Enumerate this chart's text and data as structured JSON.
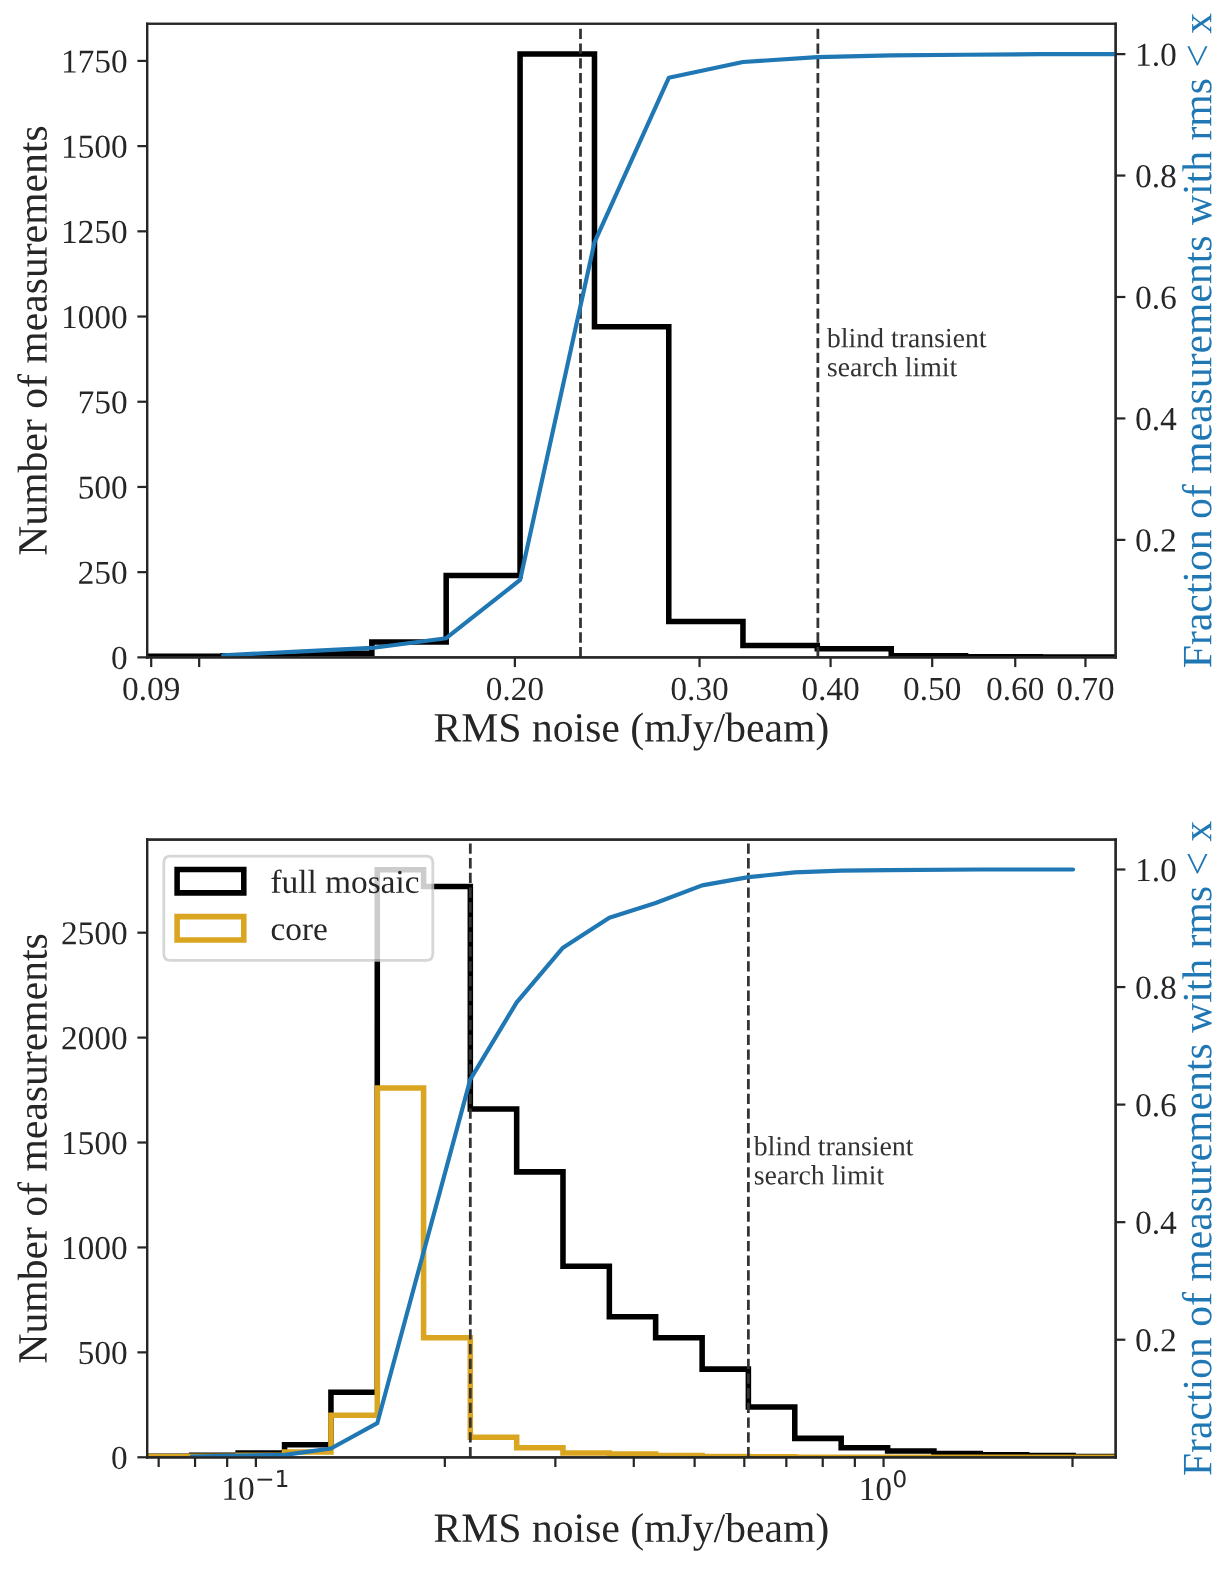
{
  "chart_data": [
    {
      "type": "histogram",
      "xlabel": "RMS noise (mJy/beam)",
      "ylabel": "Number of measurements",
      "y2label": "Fraction of measurements with rms < x",
      "log": "x",
      "bins": [
        0.0895,
        0.1054,
        0.1241,
        0.1461,
        0.172,
        0.2023,
        0.2382,
        0.2804,
        0.33,
        0.3885,
        0.457,
        0.538,
        0.634,
        0.746
      ],
      "series": [
        {
          "color": "#000000",
          "values": [
            3,
            5,
            12,
            45,
            240,
            1770,
            970,
            105,
            35,
            25,
            5,
            2,
            1
          ]
        },
        {
          "type": "line",
          "axis": "y2",
          "color": "#1f77b4",
          "x": [
            0.1054,
            0.1241,
            0.1461,
            0.172,
            0.2023,
            0.2382,
            0.2804,
            0.33,
            0.3885,
            0.457,
            0.538,
            0.634,
            0.746
          ],
          "values": [
            0.01,
            0.016,
            0.022,
            0.038,
            0.134,
            0.69,
            0.961,
            0.987,
            0.995,
            0.998,
            0.999,
            1.0,
            1.0
          ]
        }
      ],
      "xlim": [
        0.0892,
        0.748
      ],
      "xticks": [
        0.09,
        {
          "value": 0.1,
          "label": null
        },
        {
          "value": 0.2,
          "label": "0.20"
        },
        {
          "value": 0.3,
          "label": "0.30"
        },
        {
          "value": 0.4,
          "label": "0.40"
        },
        {
          "value": 0.5,
          "label": "0.50"
        },
        {
          "value": 0.6,
          "label": "0.60"
        },
        {
          "value": 0.7,
          "label": "0.70"
        }
      ],
      "ylim": [
        0,
        1859
      ],
      "yticks": [
        0,
        250,
        500,
        750,
        1000,
        1250,
        1500,
        1750
      ],
      "y2lim": [
        0.0065,
        1.05
      ],
      "y2ticks": [
        0.2,
        0.4,
        0.6,
        0.8,
        {
          "value": 1.0,
          "label": "1.0"
        }
      ],
      "ref_lines": [
        {
          "axis": "x",
          "value": 0.231,
          "label": null,
          "line_style": "dashed"
        },
        {
          "axis": "x",
          "value": 0.389,
          "label": "blind transient\nsearch limit",
          "line_style": "dashed"
        }
      ],
      "grid": false,
      "legend": false
    },
    {
      "type": "histogram",
      "xlabel": "RMS noise (mJy/beam)",
      "ylabel": "Number of measurements",
      "y2label": "Fraction of measurements with rms < x",
      "log": "x",
      "bins": [
        0.0667,
        0.079,
        0.0937,
        0.1111,
        0.1317,
        0.1561,
        0.185,
        0.2196,
        0.2603,
        0.3085,
        0.3657,
        0.4334,
        0.514,
        0.609,
        0.722,
        0.856,
        1.015,
        1.203,
        1.426,
        1.69,
        2.004,
        2.375
      ],
      "series": [
        {
          "name": "full mosaic",
          "color": "#000000",
          "values": [
            5,
            10,
            20,
            60,
            310,
            2800,
            2720,
            1660,
            1360,
            910,
            670,
            570,
            420,
            240,
            90,
            45,
            30,
            18,
            12,
            8,
            3
          ]
        },
        {
          "name": "core",
          "color": "#daa520",
          "values": [
            3,
            5,
            10,
            25,
            200,
            1760,
            570,
            95,
            45,
            20,
            15,
            8,
            3,
            2,
            0,
            0,
            0,
            0,
            0,
            0,
            0
          ]
        },
        {
          "type": "line",
          "axis": "y2",
          "color": "#1f77b4",
          "x": [
            0.079,
            0.0937,
            0.1111,
            0.1317,
            0.1561,
            0.2196,
            0.2603,
            0.3085,
            0.3657,
            0.4334,
            0.514,
            0.609,
            0.722,
            0.856,
            1.015,
            1.426,
            2.004
          ],
          "values": [
            0.001,
            0.003,
            0.004,
            0.015,
            0.058,
            0.643,
            0.774,
            0.867,
            0.918,
            0.943,
            0.973,
            0.987,
            0.995,
            0.998,
            0.999,
            1.0,
            1.0
          ]
        }
      ],
      "xlim": [
        0.0671,
        2.343
      ],
      "xticks": [
        {
          "value": 0.07,
          "label": null
        },
        {
          "value": 0.08,
          "label": null
        },
        {
          "value": 0.09,
          "label": null
        },
        {
          "value": 0.1,
          "label": "10$^{−1}$"
        },
        {
          "value": 0.2,
          "label": null
        },
        {
          "value": 0.3,
          "label": null
        },
        {
          "value": 0.4,
          "label": null
        },
        {
          "value": 0.5,
          "label": null
        },
        {
          "value": 0.6,
          "label": null
        },
        {
          "value": 0.7,
          "label": null
        },
        {
          "value": 0.8,
          "label": null
        },
        {
          "value": 0.9,
          "label": null
        },
        {
          "value": 1,
          "label": "10$^{0}$"
        },
        {
          "value": 2,
          "label": null
        }
      ],
      "ylim": [
        0,
        2944
      ],
      "yticks": [
        0,
        500,
        1000,
        1500,
        2000,
        2500
      ],
      "y2lim": [
        0,
        1.051
      ],
      "y2ticks": [
        0.2,
        0.4,
        0.6,
        0.8,
        {
          "value": 1.0,
          "label": "1.0"
        }
      ],
      "ref_lines": [
        {
          "axis": "x",
          "value": 0.2196,
          "label": null,
          "line_style": "dashed"
        },
        {
          "axis": "x",
          "value": 0.609,
          "label": "blind transient\nsearch limit",
          "line_style": "dashed"
        }
      ],
      "grid": false,
      "legend": "top left"
    }
  ]
}
